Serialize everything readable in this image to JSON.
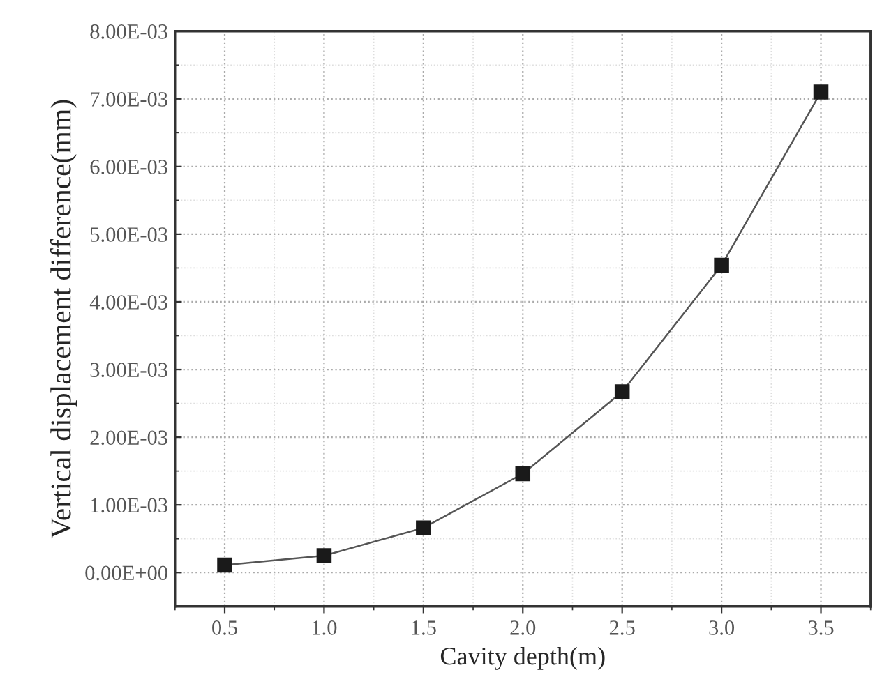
{
  "chart_data": {
    "type": "line",
    "xlabel": "Cavity depth(m)",
    "ylabel": "Vertical displacement difference(mm)",
    "x": [
      0.5,
      1.0,
      1.5,
      2.0,
      2.5,
      3.0,
      3.5
    ],
    "series": [
      {
        "color": "#1a1a1a",
        "values": [
          0.00011,
          0.00025,
          0.00066,
          0.00146,
          0.00267,
          0.00454,
          0.0071
        ]
      }
    ],
    "marker": "square",
    "line_style": "solid",
    "grid": true,
    "xlim": [
      0.25,
      3.75
    ],
    "xticks": [
      0.5,
      {
        "value": 1,
        "label": "1.0"
      },
      1.5,
      {
        "value": 2,
        "label": "2.0"
      },
      2.5,
      {
        "value": 3,
        "label": "3.0"
      },
      3.5
    ],
    "ylim": [
      -0.0005,
      0.008
    ],
    "yticks": [
      {
        "value": 0,
        "label": "0.00E+00"
      },
      {
        "value": 0.001,
        "label": "1.00E-03"
      },
      {
        "value": 0.002,
        "label": "2.00E-03"
      },
      {
        "value": 0.003,
        "label": "3.00E-03"
      },
      {
        "value": 0.004,
        "label": "4.00E-03"
      },
      {
        "value": 0.005,
        "label": "5.00E-03"
      },
      {
        "value": 0.006,
        "label": "6.00E-03"
      },
      {
        "value": 0.007,
        "label": "7.00E-03"
      },
      {
        "value": 0.008,
        "label": "8.00E-03"
      }
    ]
  }
}
